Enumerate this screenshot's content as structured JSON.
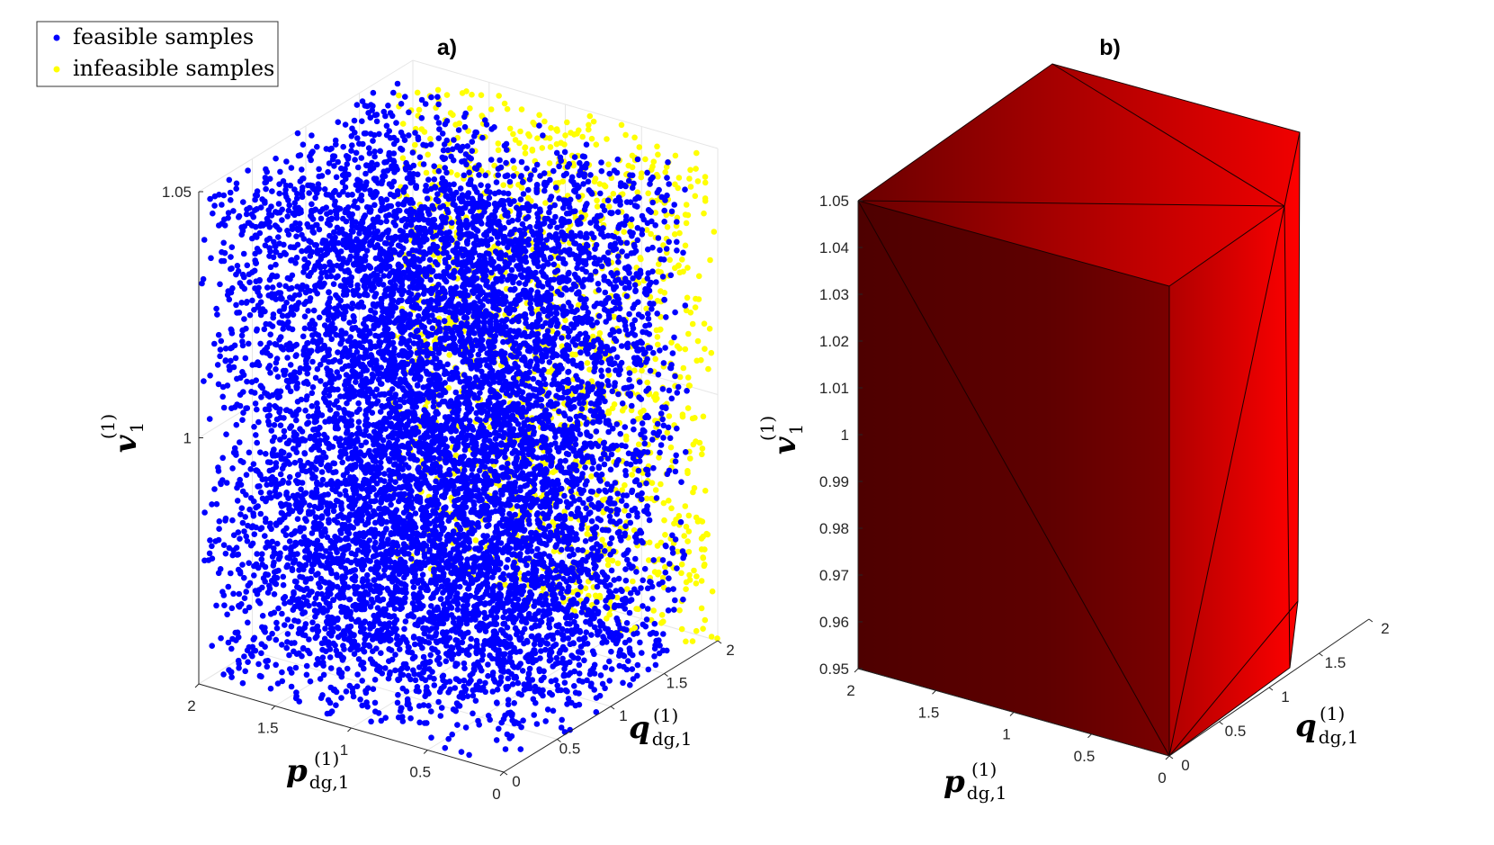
{
  "legend": {
    "items": [
      {
        "label": "feasible samples",
        "color": "#0000ff"
      },
      {
        "label": "infeasible samples",
        "color": "#ffff00"
      }
    ]
  },
  "chart_data": [
    {
      "type": "scatter",
      "title": "a)",
      "zlabel_main": "v",
      "zlabel_sub": "1",
      "zlabel_sup": "(1)",
      "xlabel_main": "p",
      "xlabel_sub": "dg,1",
      "xlabel_sup": "(1)",
      "ylabel_main": "q",
      "ylabel_sub": "dg,1",
      "ylabel_sup": "(1)",
      "xlim": [
        0,
        2
      ],
      "ylim": [
        0,
        2
      ],
      "zlim": [
        0.95,
        1.05
      ],
      "xticks": [
        "0",
        "0.5",
        "1",
        "1.5",
        "2"
      ],
      "yticks": [
        "0",
        "0.5",
        "1",
        "1.5",
        "2"
      ],
      "zticks": [
        "1",
        "1.05"
      ],
      "grid": true,
      "series": [
        {
          "name": "feasible samples",
          "color": "#0000ff",
          "q_range": [
            0,
            1.75
          ],
          "approx_points": 9000
        },
        {
          "name": "infeasible samples",
          "color": "#ffff00",
          "q_range": [
            1.75,
            2
          ],
          "approx_points": 1300
        }
      ]
    },
    {
      "type": "surface",
      "title": "b)",
      "zlabel_main": "v",
      "zlabel_sub": "1",
      "zlabel_sup": "(1)",
      "xlabel_main": "p",
      "xlabel_sub": "dg,1",
      "xlabel_sup": "(1)",
      "ylabel_main": "q",
      "ylabel_sub": "dg,1",
      "ylabel_sup": "(1)",
      "xlim": [
        0,
        2
      ],
      "ylim": [
        0,
        2
      ],
      "zlim": [
        0.95,
        1.05
      ],
      "xticks": [
        "0",
        "0.5",
        "1",
        "1.5",
        "2"
      ],
      "yticks": [
        "0",
        "0.5",
        "1",
        "1.5",
        "2"
      ],
      "zticks": [
        "0.95",
        "0.96",
        "0.97",
        "0.98",
        "0.99",
        "1",
        "1.01",
        "1.02",
        "1.03",
        "1.04",
        "1.05"
      ],
      "grid": false,
      "face_color": "#ff0000"
    }
  ]
}
